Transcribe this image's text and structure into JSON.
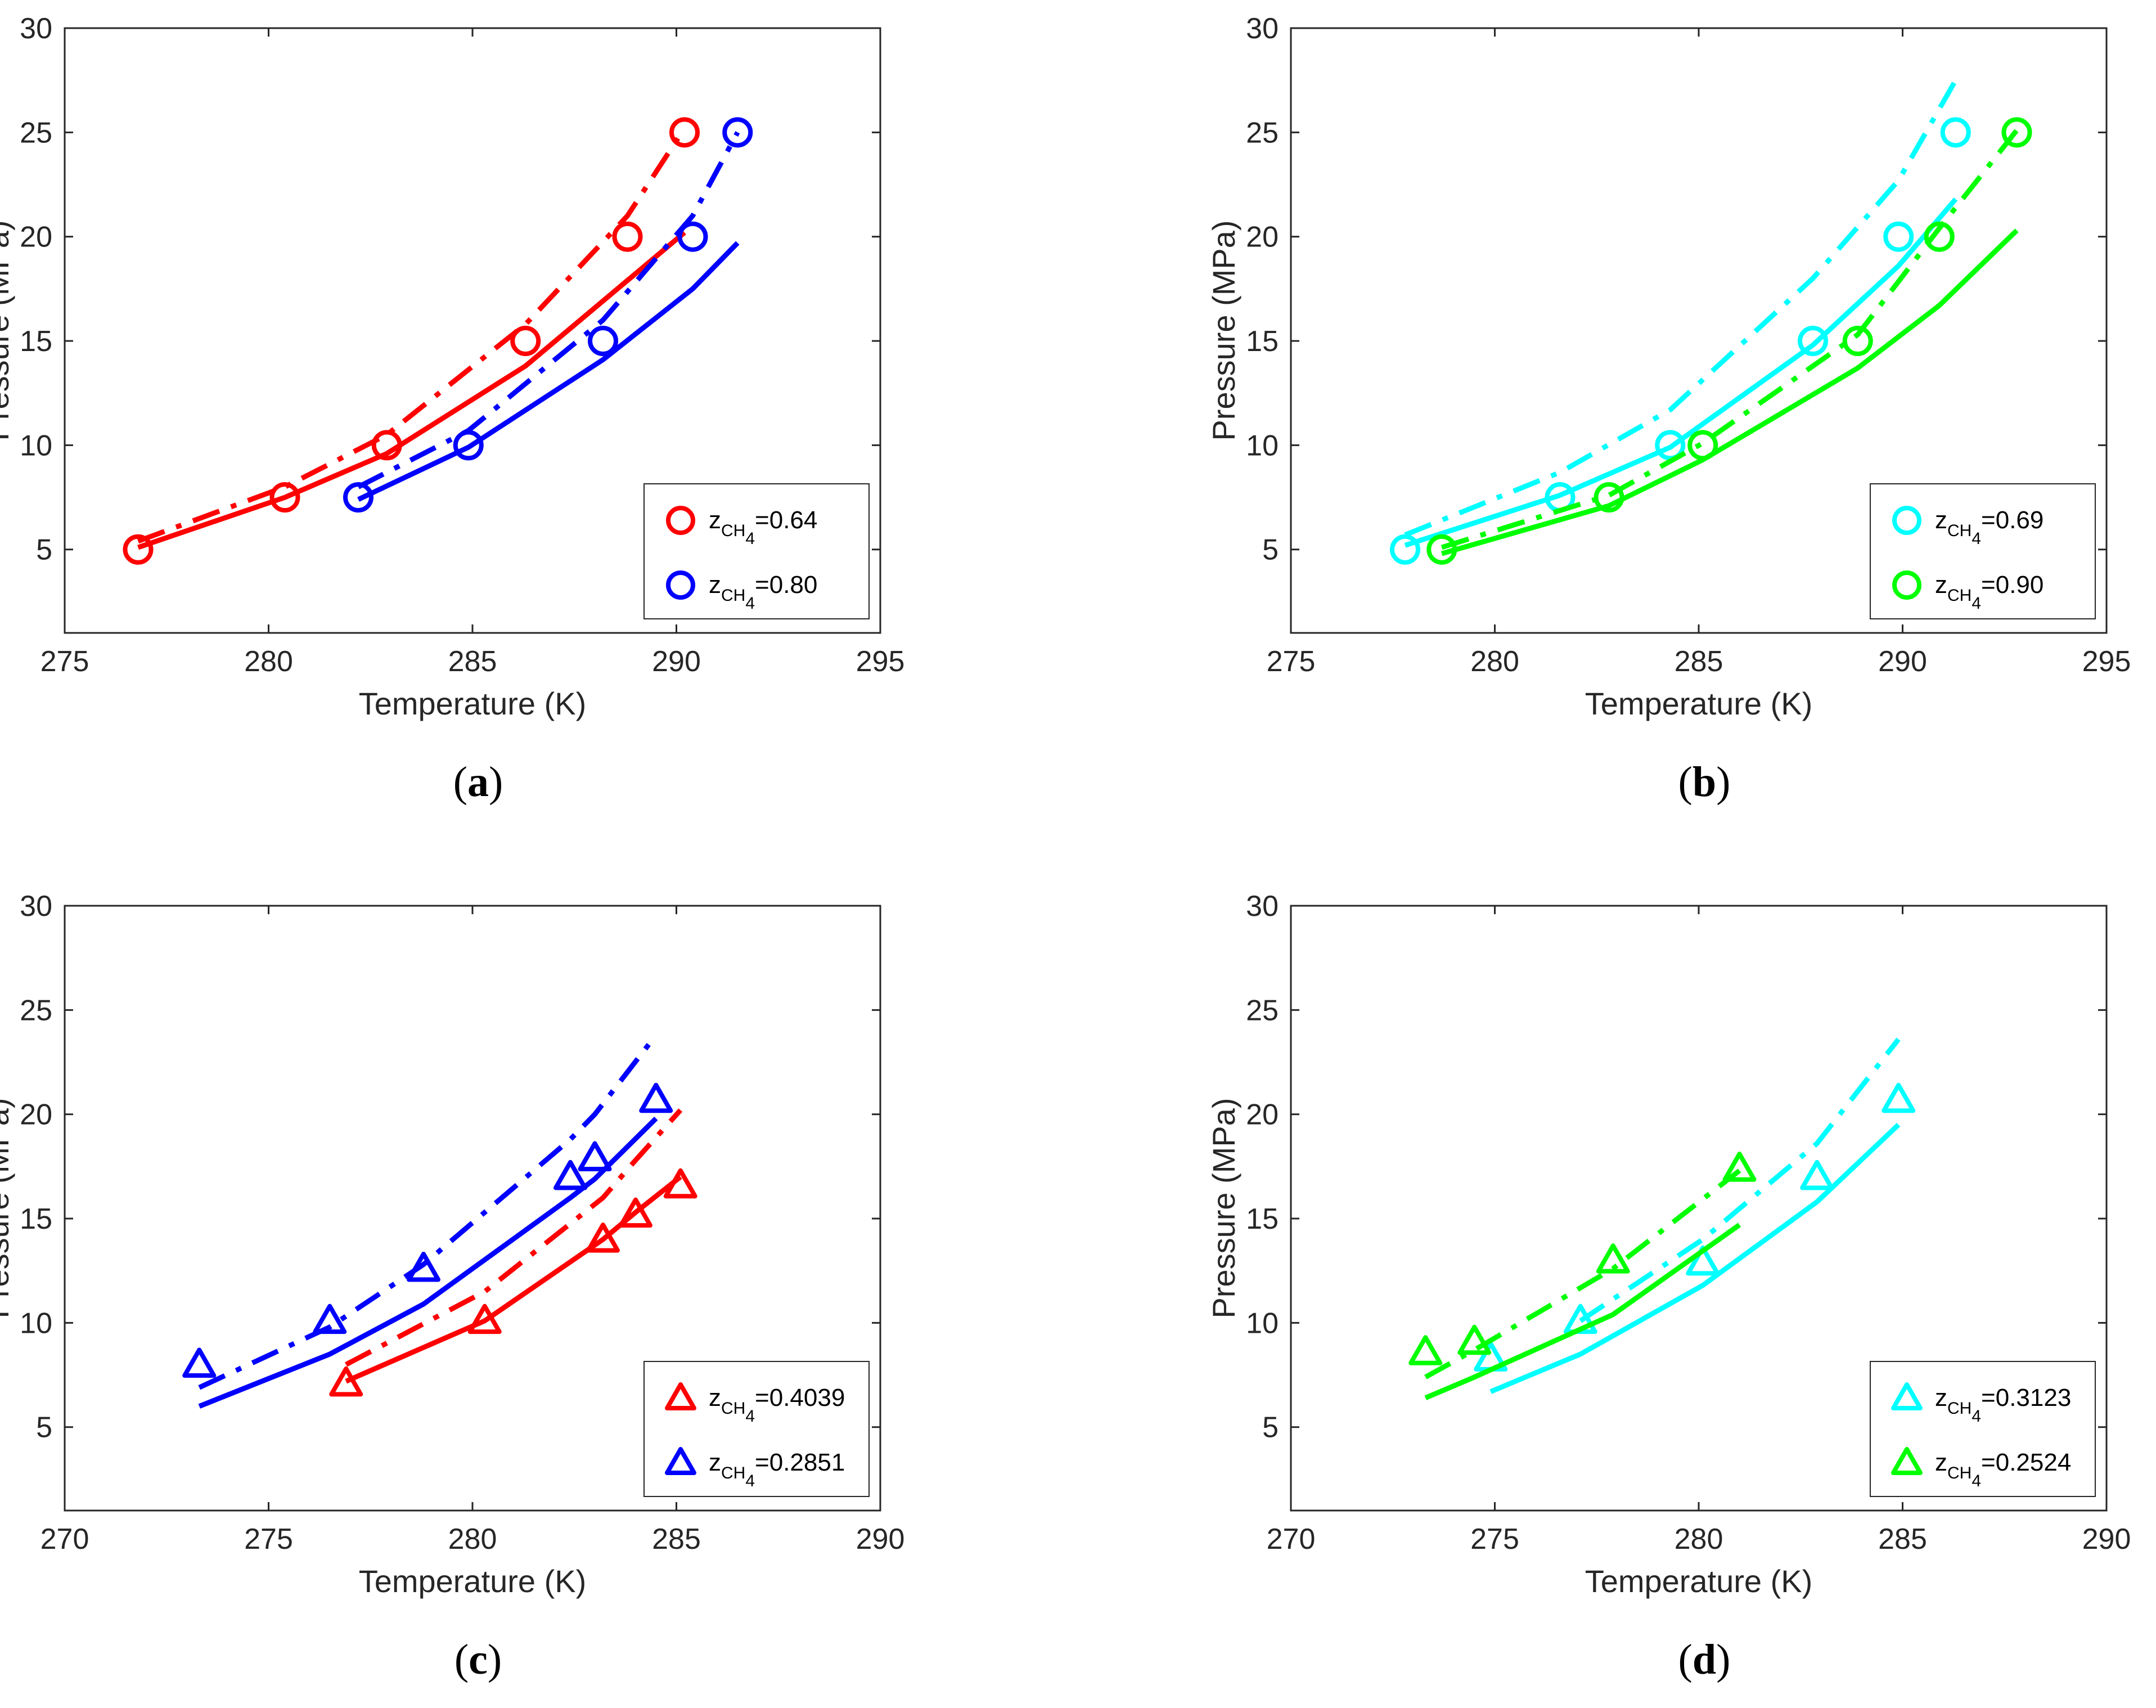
{
  "chart_data": [
    {
      "panel": "a",
      "caption_letter": "a",
      "type": "line",
      "xlabel": "Temperature (K)",
      "ylabel": "Pressure (MPa)",
      "xlim": [
        275,
        295
      ],
      "ylim": [
        1,
        30
      ],
      "xticks": [
        275,
        280,
        285,
        290,
        295
      ],
      "yticks": [
        5,
        10,
        15,
        20,
        25,
        30
      ],
      "legend_position": "bottom-right",
      "series": [
        {
          "name": "0.64",
          "color": "#ff0000",
          "marker": "circle",
          "points": {
            "x": [
              276.8,
              280.4,
              282.9,
              286.3,
              288.8,
              290.2
            ],
            "y": [
              5,
              7.5,
              10,
              15,
              20,
              25
            ]
          },
          "solid": {
            "x": [
              276.8,
              280.4,
              282.9,
              286.3,
              288.8,
              290.2
            ],
            "y": [
              5.1,
              7.5,
              9.6,
              13.8,
              17.9,
              20.2
            ]
          },
          "dashdot": {
            "x": [
              276.8,
              280.4,
              282.9,
              286.3,
              288.8,
              290.2
            ],
            "y": [
              5.4,
              8.0,
              10.5,
              15.8,
              21.0,
              25.2
            ]
          }
        },
        {
          "name": "0.80",
          "color": "#0000ff",
          "marker": "circle",
          "points": {
            "x": [
              282.2,
              284.9,
              288.2,
              290.4,
              291.5
            ],
            "y": [
              7.5,
              10,
              15,
              20,
              25
            ]
          },
          "solid": {
            "x": [
              282.2,
              284.9,
              288.2,
              290.4,
              291.5
            ],
            "y": [
              7.4,
              9.9,
              14.1,
              17.5,
              19.7
            ]
          },
          "dashdot": {
            "x": [
              282.2,
              284.9,
              288.2,
              290.4,
              291.5
            ],
            "y": [
              8.0,
              10.7,
              16.0,
              21.0,
              25.0
            ]
          }
        }
      ]
    },
    {
      "panel": "b",
      "caption_letter": "b",
      "type": "line",
      "xlabel": "Temperature (K)",
      "ylabel": "Pressure (MPa)",
      "xlim": [
        275,
        295
      ],
      "ylim": [
        1,
        30
      ],
      "xticks": [
        275,
        280,
        285,
        290,
        295
      ],
      "yticks": [
        5,
        10,
        15,
        20,
        25,
        30
      ],
      "legend_position": "bottom-right",
      "series": [
        {
          "name": "0.69",
          "color": "#00ffff",
          "marker": "circle",
          "points": {
            "x": [
              277.8,
              281.6,
              284.3,
              287.8,
              289.9,
              291.3
            ],
            "y": [
              5,
              7.5,
              10,
              15,
              20,
              25
            ]
          },
          "solid": {
            "x": [
              277.8,
              281.6,
              284.3,
              287.8,
              289.9,
              291.3
            ],
            "y": [
              5.2,
              7.6,
              9.9,
              14.8,
              18.6,
              21.8
            ]
          },
          "dashdot": {
            "x": [
              277.8,
              281.6,
              284.3,
              287.8,
              289.9,
              291.3
            ],
            "y": [
              5.7,
              8.7,
              11.7,
              18.0,
              22.7,
              27.5
            ]
          }
        },
        {
          "name": "0.90",
          "color": "#00ff00",
          "marker": "circle",
          "points": {
            "x": [
              278.7,
              282.8,
              285.1,
              288.9,
              290.9,
              292.8
            ],
            "y": [
              5,
              7.5,
              10,
              15,
              20,
              25
            ]
          },
          "solid": {
            "x": [
              278.7,
              282.8,
              285.1,
              288.9,
              290.9,
              292.8
            ],
            "y": [
              4.8,
              7.1,
              9.3,
              13.7,
              16.7,
              20.3
            ]
          },
          "dashdot": {
            "x": [
              278.7,
              282.8,
              285.1,
              288.9,
              290.9,
              292.8
            ],
            "y": [
              5.1,
              7.6,
              10.1,
              15.3,
              20.4,
              25.1
            ]
          }
        }
      ]
    },
    {
      "panel": "c",
      "caption_letter": "c",
      "type": "line",
      "xlabel": "Temperature (K)",
      "ylabel": "Pressure (MPa)",
      "xlim": [
        270,
        290
      ],
      "ylim": [
        1,
        30
      ],
      "xticks": [
        270,
        275,
        280,
        285,
        290
      ],
      "yticks": [
        5,
        10,
        15,
        20,
        25,
        30
      ],
      "legend_position": "bottom-right",
      "series": [
        {
          "name": "0.4039",
          "color": "#ff0000",
          "marker": "triangle",
          "points": {
            "x": [
              276.9,
              280.3,
              283.2,
              284.0,
              285.1
            ],
            "y": [
              7.1,
              10.1,
              14.0,
              15.2,
              16.6
            ]
          },
          "solid": {
            "x": [
              276.9,
              280.3,
              283.2,
              284.0,
              285.1
            ],
            "y": [
              7.2,
              10.1,
              14.0,
              15.3,
              17.0
            ]
          },
          "dashdot": {
            "x": [
              276.9,
              280.3,
              283.2,
              284.0,
              285.1
            ],
            "y": [
              8.0,
              11.5,
              16.0,
              17.8,
              20.2
            ]
          }
        },
        {
          "name": "0.2851",
          "color": "#0000ff",
          "marker": "triangle",
          "points": {
            "x": [
              273.3,
              276.5,
              278.8,
              282.4,
              283.0,
              284.5
            ],
            "y": [
              8.0,
              10.1,
              12.6,
              17.0,
              17.9,
              20.7
            ]
          },
          "solid": {
            "x": [
              273.3,
              276.5,
              278.8,
              282.4,
              283.0,
              284.5
            ],
            "y": [
              6.0,
              8.5,
              10.9,
              16.0,
              16.9,
              19.8
            ]
          },
          "dashdot": {
            "x": [
              273.3,
              276.5,
              278.8,
              282.4,
              283.0,
              284.5
            ],
            "y": [
              6.9,
              9.8,
              12.8,
              18.8,
              20.0,
              23.8
            ]
          }
        }
      ]
    },
    {
      "panel": "d",
      "caption_letter": "d",
      "type": "line",
      "xlabel": "Temperature (K)",
      "ylabel": "Pressure (MPa)",
      "xlim": [
        270,
        290
      ],
      "ylim": [
        1,
        30
      ],
      "xticks": [
        270,
        275,
        280,
        285,
        290
      ],
      "yticks": [
        5,
        10,
        15,
        20,
        25,
        30
      ],
      "legend_position": "bottom-right",
      "series": [
        {
          "name": "0.3123",
          "color": "#00ffff",
          "marker": "triangle",
          "points": {
            "x": [
              274.9,
              277.1,
              280.1,
              282.9,
              284.9
            ],
            "y": [
              8.3,
              10.1,
              12.9,
              17.0,
              20.7
            ]
          },
          "solid": {
            "x": [
              274.9,
              277.1,
              280.1,
              282.9,
              284.9
            ],
            "y": [
              6.7,
              8.5,
              11.8,
              15.8,
              19.5
            ]
          },
          "dashdot": {
            "x": [
              277.1,
              280.1,
              282.9,
              284.9
            ],
            "y": [
              10.1,
              14.0,
              18.6,
              23.6
            ]
          }
        },
        {
          "name": "0.2524",
          "color": "#00ff00",
          "marker": "triangle",
          "points": {
            "x": [
              273.3,
              274.5,
              277.9,
              281.0
            ],
            "y": [
              8.6,
              9.1,
              13.0,
              17.4
            ]
          },
          "solid": {
            "x": [
              273.3,
              274.5,
              277.9,
              281.0
            ],
            "y": [
              6.4,
              7.4,
              10.4,
              14.7
            ]
          },
          "dashdot": {
            "x": [
              273.3,
              274.5,
              277.9,
              281.0
            ],
            "y": [
              7.4,
              8.7,
              12.6,
              17.3
            ]
          }
        }
      ]
    }
  ],
  "legend_prefix": "z",
  "legend_subscript": "CH",
  "legend_subsub": "4",
  "legend_equals": "="
}
